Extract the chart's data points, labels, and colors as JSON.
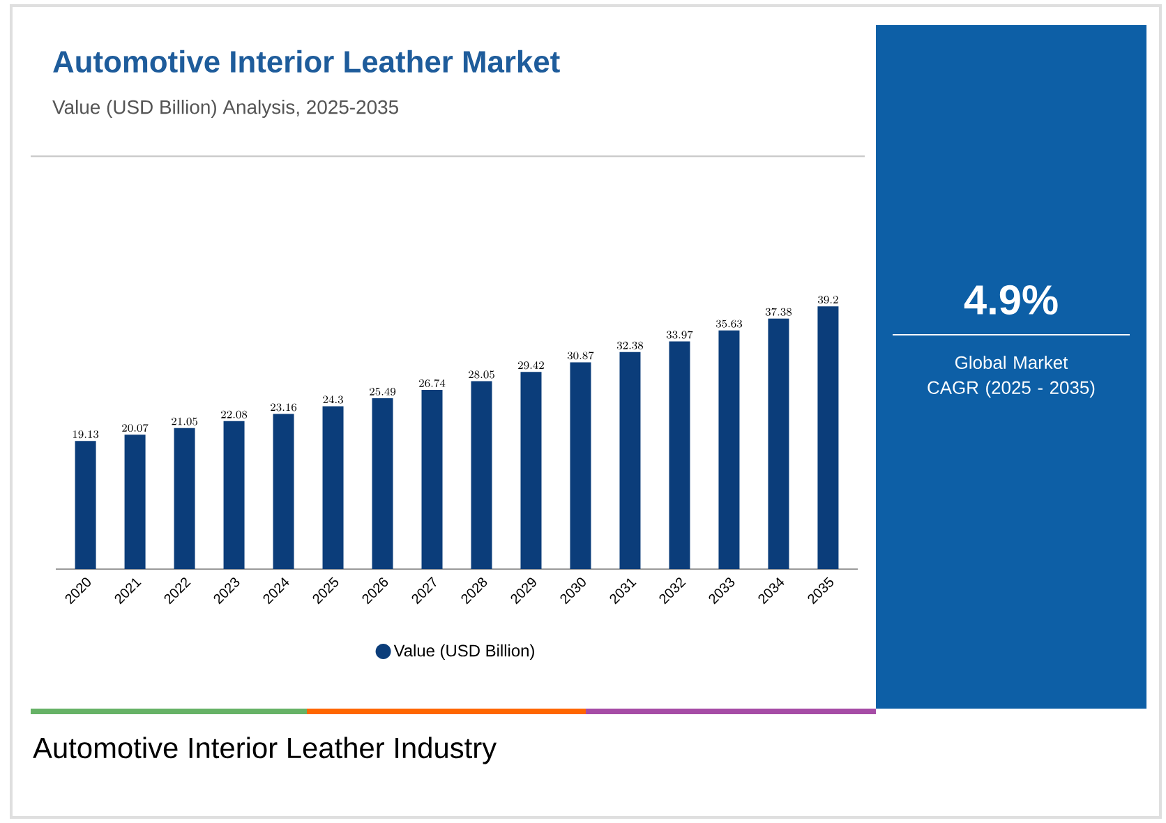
{
  "chart_data": {
    "type": "bar",
    "title": "Automotive Interior Leather Market",
    "subtitle": "Value (USD Billion) Analysis, 2025-2035",
    "categories": [
      "2020",
      "2021",
      "2022",
      "2023",
      "2024",
      "2025",
      "2026",
      "2027",
      "2028",
      "2029",
      "2030",
      "2031",
      "2032",
      "2033",
      "2034",
      "2035"
    ],
    "series": [
      {
        "name": "Value (USD Billion)",
        "color": "#0b3d7a",
        "values": [
          19.13,
          20.07,
          21.05,
          22.08,
          23.16,
          24.3,
          25.49,
          26.74,
          28.05,
          29.42,
          30.87,
          32.38,
          33.97,
          35.63,
          37.38,
          39.2
        ]
      }
    ],
    "data_labels": true,
    "annotations": [
      "4.9%",
      "Global Market CAGR (2025 - 2035)",
      "Automotive Interior Leather Industry"
    ],
    "legend": "bottom",
    "tick_labels": "x"
  }
}
